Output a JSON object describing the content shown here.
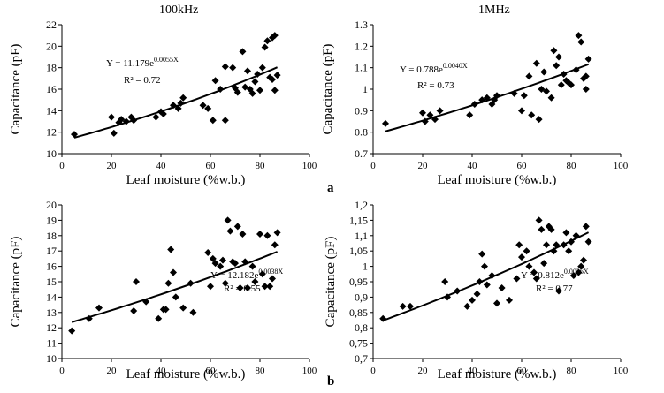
{
  "column_titles": [
    "100kHz",
    "1MHz"
  ],
  "row_letters": [
    "a",
    "b"
  ],
  "chart_data": [
    {
      "type": "scatter",
      "panel": "a-100kHz",
      "xlabel": "Leaf moisture (%w.b.)",
      "ylabel": "Capacitance (pF)",
      "xlim": [
        0,
        100
      ],
      "ylim": [
        10,
        22
      ],
      "xticks": [
        0,
        20,
        40,
        60,
        80,
        100
      ],
      "yticks": [
        10,
        12,
        14,
        16,
        18,
        20,
        22
      ],
      "ytick_labels": [
        "10",
        "12",
        "14",
        "16",
        "18",
        "20",
        "22"
      ],
      "grid": false,
      "marker": "diamond",
      "equation": "Y = 11.179e",
      "equation_exponent": "0.0055X",
      "r_squared": "R² = 0.72",
      "fit": {
        "a": 11.179,
        "b": 0.0055
      },
      "points": [
        [
          5,
          11.8
        ],
        [
          20,
          13.4
        ],
        [
          21,
          11.9
        ],
        [
          23,
          12.9
        ],
        [
          24,
          13.2
        ],
        [
          26,
          13.0
        ],
        [
          28,
          13.4
        ],
        [
          29,
          13.1
        ],
        [
          38,
          13.4
        ],
        [
          40,
          13.9
        ],
        [
          41,
          13.7
        ],
        [
          45,
          14.5
        ],
        [
          47,
          14.2
        ],
        [
          48,
          14.7
        ],
        [
          49,
          15.2
        ],
        [
          57,
          14.5
        ],
        [
          59,
          14.2
        ],
        [
          61,
          13.1
        ],
        [
          62,
          16.8
        ],
        [
          64,
          16.0
        ],
        [
          66,
          13.1
        ],
        [
          66,
          18.1
        ],
        [
          69,
          18.0
        ],
        [
          70,
          16.1
        ],
        [
          71,
          15.7
        ],
        [
          73,
          19.5
        ],
        [
          74,
          16.2
        ],
        [
          75,
          17.7
        ],
        [
          76,
          16.0
        ],
        [
          77,
          15.6
        ],
        [
          78,
          16.7
        ],
        [
          79,
          17.4
        ],
        [
          80,
          15.9
        ],
        [
          81,
          18.0
        ],
        [
          82,
          19.9
        ],
        [
          83,
          20.5
        ],
        [
          84,
          17.1
        ],
        [
          85,
          16.9
        ],
        [
          85,
          20.8
        ],
        [
          86,
          21.0
        ],
        [
          86,
          15.9
        ],
        [
          87,
          17.3
        ]
      ]
    },
    {
      "type": "scatter",
      "panel": "a-1MHz",
      "xlabel": "Leaf moisture (%w.b.)",
      "ylabel": "Capacitance (pF)",
      "xlim": [
        0,
        100
      ],
      "ylim": [
        0.7,
        1.3
      ],
      "xticks": [
        0,
        20,
        40,
        60,
        80,
        100
      ],
      "yticks": [
        0.7,
        0.8,
        0.9,
        1.0,
        1.1,
        1.2,
        1.3
      ],
      "ytick_labels": [
        "0.7",
        "0.8",
        "0.9",
        "1",
        "1.1",
        "1.2",
        "1.3"
      ],
      "grid": false,
      "marker": "diamond",
      "equation": "Y = 0.788e",
      "equation_exponent": "0.0040X",
      "r_squared": "R² = 0.73",
      "fit": {
        "a": 0.788,
        "b": 0.004
      },
      "points": [
        [
          5,
          0.84
        ],
        [
          20,
          0.89
        ],
        [
          21,
          0.85
        ],
        [
          23,
          0.88
        ],
        [
          25,
          0.86
        ],
        [
          27,
          0.9
        ],
        [
          39,
          0.88
        ],
        [
          41,
          0.93
        ],
        [
          44,
          0.95
        ],
        [
          46,
          0.96
        ],
        [
          48,
          0.93
        ],
        [
          49,
          0.95
        ],
        [
          50,
          0.97
        ],
        [
          57,
          0.98
        ],
        [
          60,
          0.9
        ],
        [
          61,
          0.97
        ],
        [
          63,
          1.06
        ],
        [
          64,
          0.88
        ],
        [
          66,
          1.12
        ],
        [
          67,
          0.86
        ],
        [
          68,
          1.0
        ],
        [
          69,
          1.08
        ],
        [
          70,
          0.99
        ],
        [
          72,
          0.96
        ],
        [
          73,
          1.18
        ],
        [
          74,
          1.11
        ],
        [
          75,
          1.15
        ],
        [
          76,
          1.02
        ],
        [
          77,
          1.07
        ],
        [
          78,
          1.04
        ],
        [
          79,
          1.03
        ],
        [
          80,
          1.02
        ],
        [
          82,
          1.09
        ],
        [
          83,
          1.25
        ],
        [
          84,
          1.22
        ],
        [
          85,
          1.05
        ],
        [
          86,
          1.06
        ],
        [
          86,
          1.0
        ],
        [
          87,
          1.14
        ]
      ]
    },
    {
      "type": "scatter",
      "panel": "b-100kHz",
      "xlabel": "Leaf moisture (%w.b.)",
      "ylabel": "Capacitance (pF)",
      "xlim": [
        0,
        100
      ],
      "ylim": [
        10,
        20
      ],
      "xticks": [
        0,
        20,
        40,
        60,
        80,
        100
      ],
      "yticks": [
        10,
        11,
        12,
        13,
        14,
        15,
        16,
        17,
        18,
        19,
        20
      ],
      "ytick_labels": [
        "10",
        "11",
        "12",
        "13",
        "14",
        "15",
        "16",
        "17",
        "18",
        "19",
        "20"
      ],
      "grid": false,
      "marker": "diamond",
      "equation": "Y = 12.182e",
      "equation_exponent": "0.0038X",
      "r_squared": "R² = 0.55",
      "fit": {
        "a": 12.182,
        "b": 0.0038
      },
      "points": [
        [
          4,
          11.8
        ],
        [
          11,
          12.6
        ],
        [
          15,
          13.3
        ],
        [
          29,
          13.1
        ],
        [
          30,
          15.0
        ],
        [
          34,
          13.7
        ],
        [
          39,
          12.6
        ],
        [
          41,
          13.2
        ],
        [
          42,
          13.2
        ],
        [
          43,
          14.9
        ],
        [
          44,
          17.1
        ],
        [
          45,
          15.6
        ],
        [
          46,
          14.0
        ],
        [
          49,
          13.3
        ],
        [
          52,
          14.9
        ],
        [
          53,
          13.0
        ],
        [
          59,
          16.9
        ],
        [
          60,
          14.7
        ],
        [
          61,
          16.5
        ],
        [
          62,
          16.2
        ],
        [
          64,
          16.0
        ],
        [
          65,
          16.4
        ],
        [
          66,
          14.9
        ],
        [
          67,
          19.0
        ],
        [
          68,
          18.3
        ],
        [
          69,
          16.3
        ],
        [
          70,
          16.2
        ],
        [
          71,
          18.6
        ],
        [
          72,
          14.6
        ],
        [
          73,
          18.1
        ],
        [
          74,
          16.3
        ],
        [
          75,
          14.6
        ],
        [
          77,
          16.0
        ],
        [
          78,
          15.0
        ],
        [
          80,
          18.1
        ],
        [
          81,
          15.5
        ],
        [
          82,
          14.7
        ],
        [
          83,
          18.0
        ],
        [
          84,
          14.7
        ],
        [
          85,
          15.2
        ],
        [
          86,
          17.4
        ],
        [
          87,
          18.2
        ]
      ]
    },
    {
      "type": "scatter",
      "panel": "b-1MHz",
      "xlabel": "Leaf moisture (%w.b.)",
      "ylabel": "Capacitance (pF)",
      "xlim": [
        0,
        100
      ],
      "ylim": [
        0.7,
        1.2
      ],
      "xticks": [
        0,
        20,
        40,
        60,
        80,
        100
      ],
      "yticks": [
        0.7,
        0.75,
        0.8,
        0.85,
        0.9,
        0.95,
        1.0,
        1.05,
        1.1,
        1.15,
        1.2
      ],
      "ytick_labels": [
        "0,7",
        "0,75",
        "0,8",
        "0,85",
        "0,9",
        "0,95",
        "1",
        "1,05",
        "1,1",
        "1,15",
        "1,2"
      ],
      "grid": false,
      "marker": "diamond",
      "equation": "Y = 0.812e",
      "equation_exponent": "0.0036X",
      "r_squared": "R² = 0.77",
      "fit": {
        "a": 0.812,
        "b": 0.0036
      },
      "points": [
        [
          4,
          0.83
        ],
        [
          12,
          0.87
        ],
        [
          15,
          0.87
        ],
        [
          29,
          0.95
        ],
        [
          30,
          0.9
        ],
        [
          34,
          0.92
        ],
        [
          38,
          0.87
        ],
        [
          40,
          0.89
        ],
        [
          42,
          0.91
        ],
        [
          43,
          0.95
        ],
        [
          44,
          1.04
        ],
        [
          45,
          1.0
        ],
        [
          46,
          0.94
        ],
        [
          48,
          0.97
        ],
        [
          50,
          0.88
        ],
        [
          52,
          0.93
        ],
        [
          55,
          0.89
        ],
        [
          58,
          0.96
        ],
        [
          59,
          1.07
        ],
        [
          60,
          1.03
        ],
        [
          62,
          1.05
        ],
        [
          63,
          1.0
        ],
        [
          65,
          0.98
        ],
        [
          66,
          0.96
        ],
        [
          67,
          1.15
        ],
        [
          68,
          1.12
        ],
        [
          69,
          1.01
        ],
        [
          70,
          1.07
        ],
        [
          71,
          1.13
        ],
        [
          72,
          1.12
        ],
        [
          73,
          1.05
        ],
        [
          74,
          1.07
        ],
        [
          75,
          0.92
        ],
        [
          77,
          1.07
        ],
        [
          78,
          1.11
        ],
        [
          79,
          1.05
        ],
        [
          80,
          1.08
        ],
        [
          81,
          0.97
        ],
        [
          82,
          1.1
        ],
        [
          83,
          0.98
        ],
        [
          84,
          1.0
        ],
        [
          85,
          1.02
        ],
        [
          86,
          1.13
        ],
        [
          87,
          1.08
        ]
      ]
    }
  ]
}
